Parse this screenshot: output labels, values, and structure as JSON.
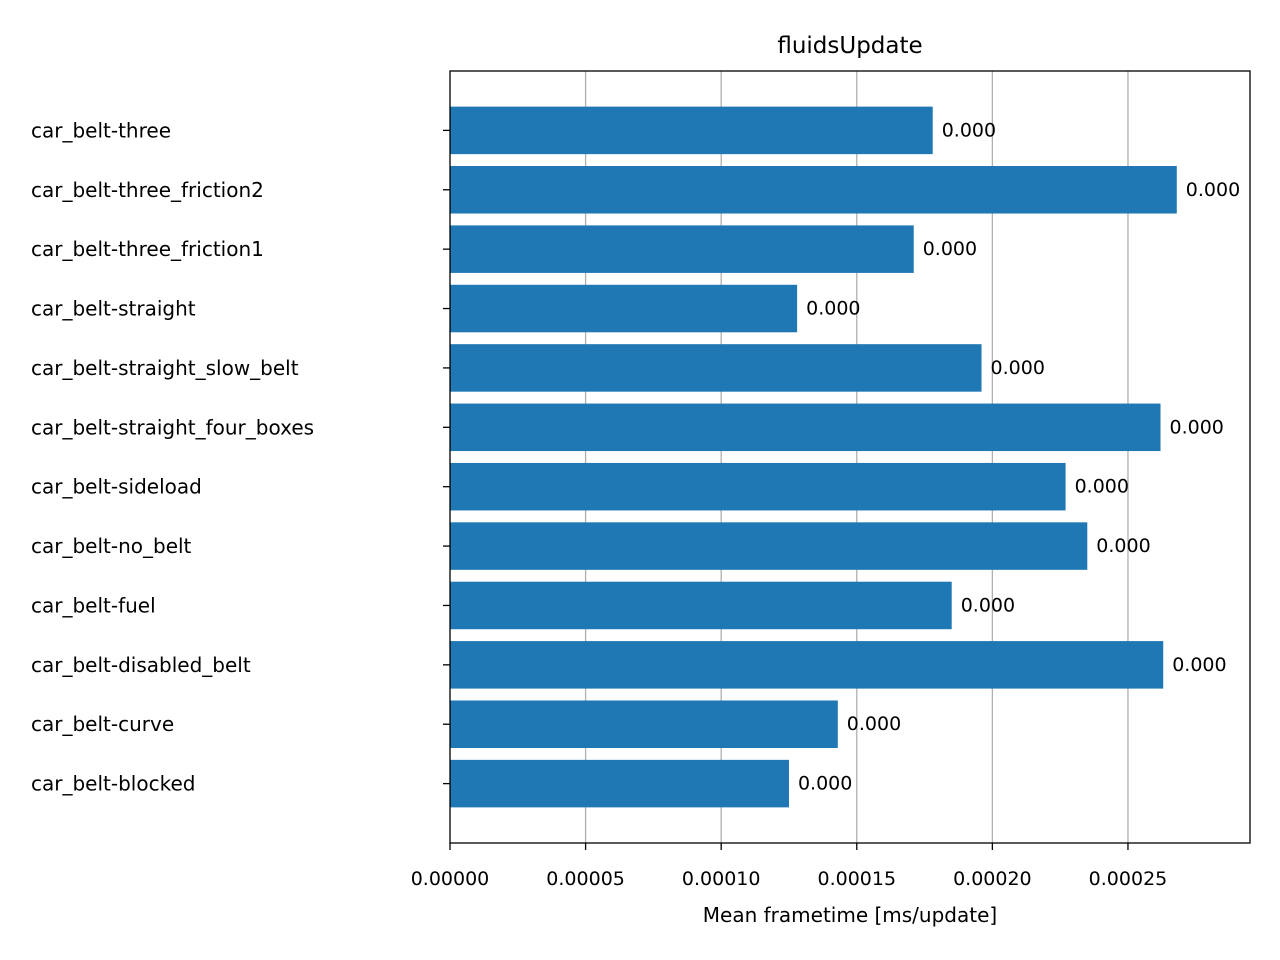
{
  "chart_data": {
    "type": "bar",
    "orientation": "horizontal",
    "title": "fluidsUpdate",
    "xlabel": "Mean frametime [ms/update]",
    "ylabel": "",
    "xlim": [
      0,
      0.000295
    ],
    "x_ticks": [
      "0.00000",
      "0.00005",
      "0.00010",
      "0.00015",
      "0.00020",
      "0.00025"
    ],
    "x_tick_values": [
      0,
      5e-05,
      0.0001,
      0.00015,
      0.0002,
      0.00025
    ],
    "grid": "vertical",
    "bar_color": "#1f77b4",
    "categories": [
      "car_belt-three",
      "car_belt-three_friction2",
      "car_belt-three_friction1",
      "car_belt-straight",
      "car_belt-straight_slow_belt",
      "car_belt-straight_four_boxes",
      "car_belt-sideload",
      "car_belt-no_belt",
      "car_belt-fuel",
      "car_belt-disabled_belt",
      "car_belt-curve",
      "car_belt-blocked"
    ],
    "values": [
      0.000178,
      0.000268,
      0.000171,
      0.000128,
      0.000196,
      0.000262,
      0.000227,
      0.000235,
      0.000185,
      0.000263,
      0.000143,
      0.000125
    ],
    "data_labels": [
      "0.000",
      "0.000",
      "0.000",
      "0.000",
      "0.000",
      "0.000",
      "0.000",
      "0.000",
      "0.000",
      "0.000",
      "0.000",
      "0.000"
    ]
  }
}
